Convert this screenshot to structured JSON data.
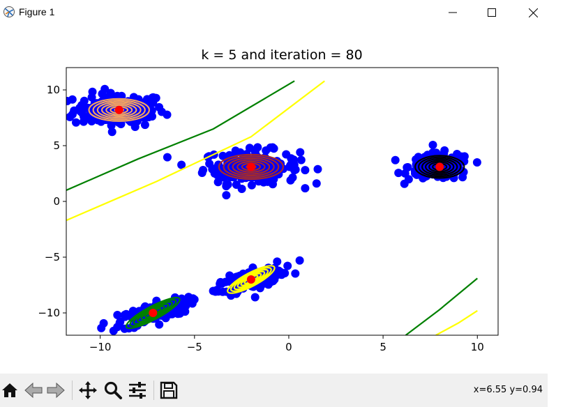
{
  "window": {
    "title": "Figure 1",
    "app_icon": "matplotlib-icon",
    "controls": [
      "minimize-icon",
      "maximize-icon",
      "close-icon"
    ]
  },
  "toolbar": {
    "buttons": [
      "home-icon",
      "back-icon",
      "forward-icon",
      "pan-icon",
      "zoom-icon",
      "configure-subplots-icon",
      "save-icon"
    ],
    "coords": "x=6.55 y=0.94"
  },
  "chart_data": {
    "type": "scatter",
    "title": "k = 5 and iteration = 80",
    "xlabel": "",
    "ylabel": "",
    "xlim": [
      -11.8,
      11.1
    ],
    "ylim": [
      -12,
      12
    ],
    "xticks": [
      -10,
      -5,
      0,
      5,
      10
    ],
    "yticks": [
      -10,
      -5,
      0,
      5,
      10
    ],
    "xtick_labels": [
      "−10",
      "−5",
      "0",
      "5",
      "10"
    ],
    "ytick_labels": [
      "−10",
      "−5",
      "0",
      "5",
      "10"
    ],
    "grid": false,
    "point_color": "#0000ff",
    "center_color": "#ff0000",
    "clusters": [
      {
        "center": [
          -9.0,
          8.2
        ],
        "spread": [
          1.6,
          1.0
        ],
        "contour_color": "#f4a460",
        "contour_width": [
          1.6,
          1.0
        ]
      },
      {
        "center": [
          -2.0,
          3.1
        ],
        "spread": [
          1.7,
          1.0
        ],
        "contour_color": "#a52a2a",
        "contour_width": [
          1.7,
          1.1
        ]
      },
      {
        "center": [
          8.0,
          3.1
        ],
        "spread": [
          1.1,
          0.8
        ],
        "contour_color": "#000000",
        "contour_width": [
          1.3,
          1.0
        ]
      },
      {
        "center": [
          -2.0,
          -7.0
        ],
        "spread": [
          1.3,
          0.5
        ],
        "contour_color": "#ffff00",
        "contour_width": [
          1.4,
          0.6
        ],
        "angle": 28
      },
      {
        "center": [
          -7.2,
          -10.0
        ],
        "spread": [
          1.4,
          0.5
        ],
        "contour_color": "#008000",
        "contour_width": [
          1.6,
          0.6
        ],
        "angle": 28
      }
    ],
    "boundaries": [
      {
        "color": "#008000",
        "points": [
          [
            -11.8,
            1.0
          ],
          [
            -8.0,
            3.8
          ],
          [
            -4.0,
            6.5
          ],
          [
            0.3,
            10.8
          ]
        ]
      },
      {
        "color": "#ffff00",
        "points": [
          [
            -11.8,
            -1.7
          ],
          [
            -7.0,
            1.8
          ],
          [
            -2.0,
            5.8
          ],
          [
            1.9,
            10.8
          ]
        ]
      },
      {
        "color": "#008000",
        "points": [
          [
            6.2,
            -12.0
          ],
          [
            8.0,
            -9.7
          ],
          [
            10.0,
            -6.9
          ]
        ]
      },
      {
        "color": "#ffff00",
        "points": [
          [
            7.8,
            -12.0
          ],
          [
            9.0,
            -10.9
          ],
          [
            10.0,
            -9.8
          ]
        ]
      }
    ]
  }
}
